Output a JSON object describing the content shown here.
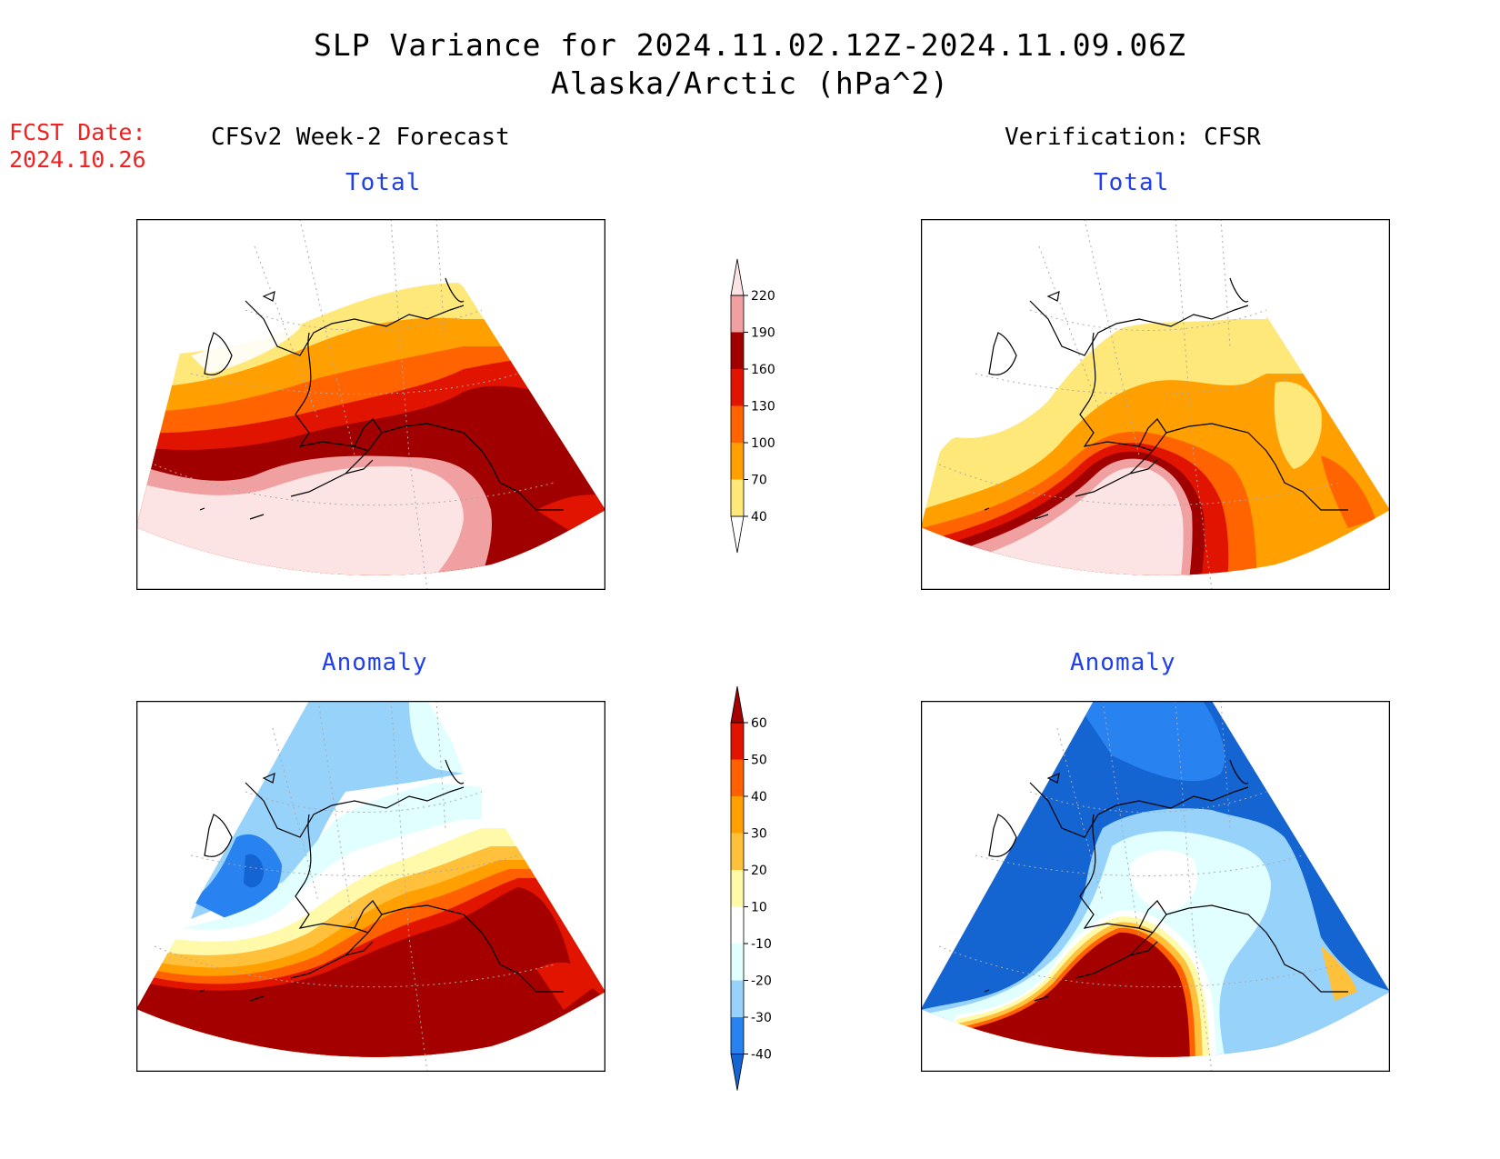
{
  "title": {
    "line1": "SLP Variance for 2024.11.02.12Z-2024.11.09.06Z",
    "line2": "Alaska/Arctic (hPa^2)"
  },
  "forecast_date": {
    "label": "FCST Date:",
    "value": "2024.10.26"
  },
  "left_column_title": "CFSv2 Week-2 Forecast",
  "right_column_title": "Verification: CFSR",
  "panels": [
    {
      "name": "forecast-total",
      "subtitle": "Total"
    },
    {
      "name": "verification-total",
      "subtitle": "Total"
    },
    {
      "name": "forecast-anomaly",
      "subtitle": "Anomaly"
    },
    {
      "name": "verification-anomaly",
      "subtitle": "Anomaly"
    }
  ],
  "total_colorbar": {
    "labels": [
      "40",
      "70",
      "100",
      "130",
      "160",
      "190",
      "220"
    ],
    "colors": [
      "#ffffff",
      "#ffe87a",
      "#ffa000",
      "#ff6400",
      "#e01400",
      "#a00000",
      "#f0a0a0",
      "#fde4e4"
    ]
  },
  "anomaly_colorbar": {
    "labels": [
      "-40",
      "-30",
      "-20",
      "-10",
      "10",
      "20",
      "30",
      "40",
      "50",
      "60"
    ],
    "colors": [
      "#1464d2",
      "#2882f0",
      "#96d2fa",
      "#e1ffff",
      "#ffffff",
      "#fffaaa",
      "#ffc03c",
      "#ffa000",
      "#ff6000",
      "#e11400",
      "#a50000"
    ]
  }
}
